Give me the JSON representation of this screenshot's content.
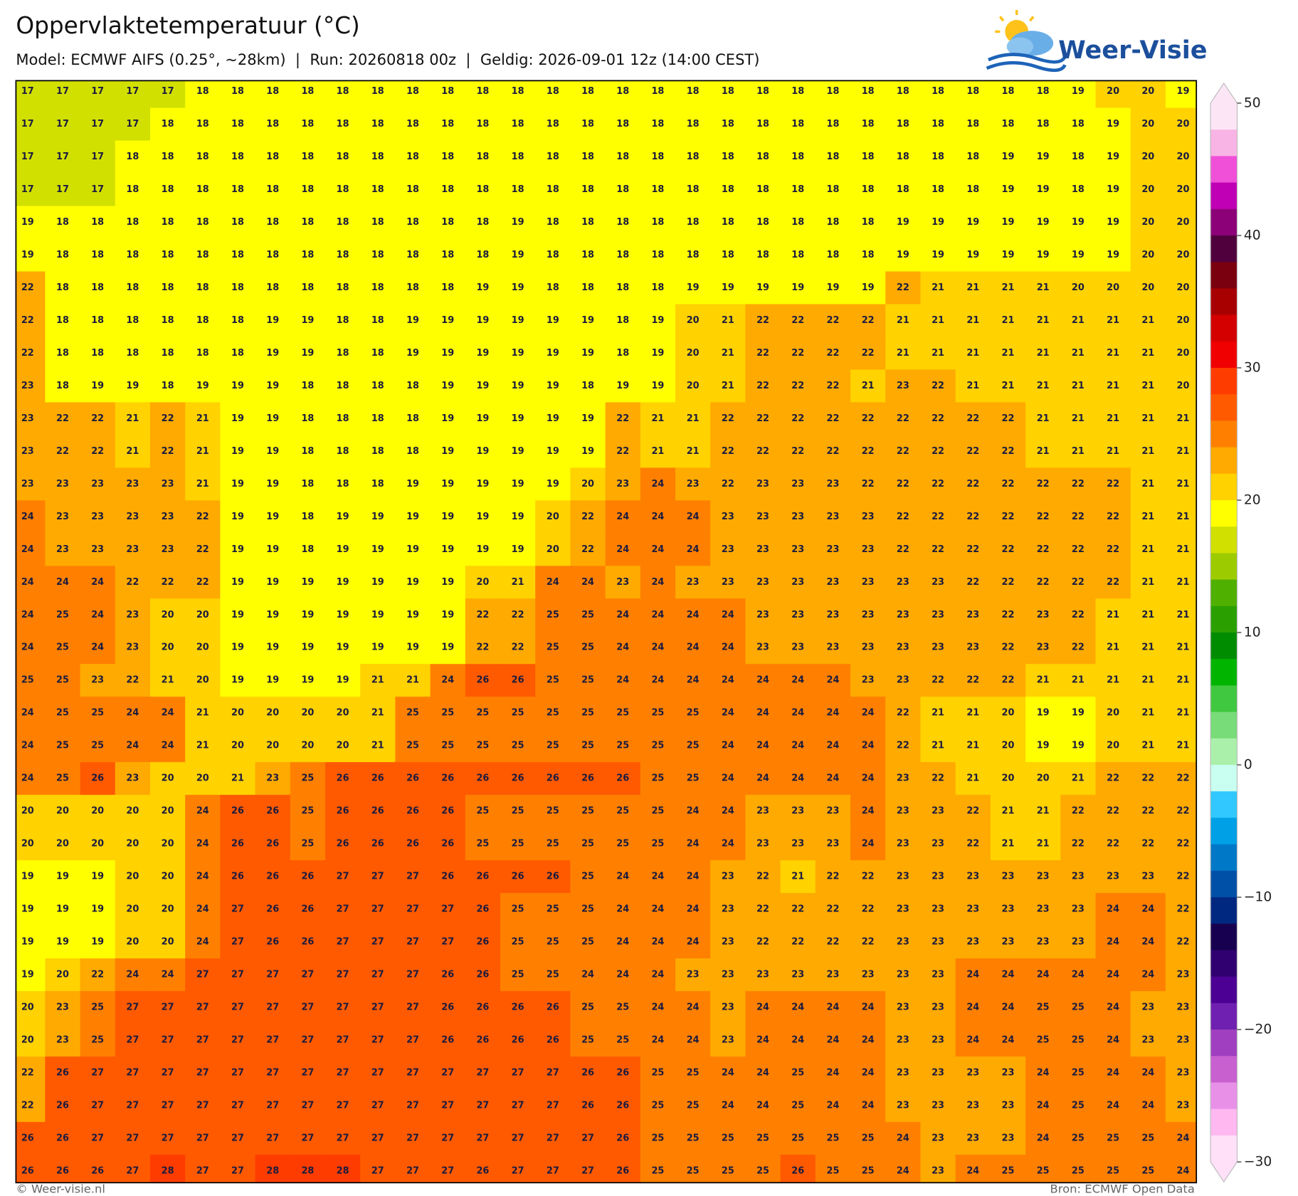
{
  "header": {
    "title": "Oppervlaktetemperatuur (°C)",
    "subtitle": "Model: ECMWF AIFS (0.25°, ~28km)  |  Run: 20260818 00z  |  Geldig: 2026-09-01 12z (14:00 CEST)",
    "logo": "Weer-Visie"
  },
  "map": {
    "rows": [
      [
        17,
        17,
        17,
        17,
        17,
        18,
        18,
        18,
        18,
        18,
        18,
        18,
        18,
        18,
        18,
        18,
        18,
        18,
        18,
        18,
        18,
        18,
        18,
        18,
        18,
        18,
        18,
        18,
        18,
        18,
        19,
        20,
        20,
        19
      ],
      [
        17,
        17,
        17,
        17,
        18,
        18,
        18,
        18,
        18,
        18,
        18,
        18,
        18,
        18,
        18,
        18,
        18,
        18,
        18,
        18,
        18,
        18,
        18,
        18,
        18,
        18,
        18,
        18,
        18,
        18,
        18,
        19,
        20,
        20
      ],
      [
        17,
        17,
        17,
        18,
        18,
        18,
        18,
        18,
        18,
        18,
        18,
        18,
        18,
        18,
        18,
        18,
        18,
        18,
        18,
        18,
        18,
        18,
        18,
        18,
        18,
        18,
        18,
        18,
        19,
        19,
        18,
        19,
        20,
        20
      ],
      [
        17,
        17,
        17,
        18,
        18,
        18,
        18,
        18,
        18,
        18,
        18,
        18,
        18,
        18,
        18,
        18,
        18,
        18,
        18,
        18,
        18,
        18,
        18,
        18,
        18,
        18,
        18,
        18,
        19,
        19,
        18,
        19,
        20,
        20
      ],
      [
        19,
        18,
        18,
        18,
        18,
        18,
        18,
        18,
        18,
        18,
        18,
        18,
        18,
        18,
        19,
        18,
        18,
        18,
        18,
        18,
        18,
        18,
        18,
        18,
        18,
        19,
        19,
        19,
        19,
        19,
        19,
        19,
        20,
        20
      ],
      [
        19,
        18,
        18,
        18,
        18,
        18,
        18,
        18,
        18,
        18,
        18,
        18,
        18,
        18,
        19,
        18,
        18,
        18,
        18,
        18,
        18,
        18,
        18,
        18,
        18,
        19,
        19,
        19,
        19,
        19,
        19,
        19,
        20,
        20
      ],
      [
        22,
        18,
        18,
        18,
        18,
        18,
        18,
        18,
        18,
        18,
        18,
        18,
        18,
        19,
        19,
        18,
        18,
        18,
        18,
        19,
        19,
        19,
        19,
        19,
        19,
        22,
        21,
        21,
        21,
        21,
        20,
        20,
        20,
        20
      ],
      [
        22,
        18,
        18,
        18,
        18,
        18,
        18,
        19,
        19,
        18,
        18,
        19,
        19,
        19,
        19,
        19,
        19,
        18,
        19,
        20,
        21,
        22,
        22,
        22,
        22,
        21,
        21,
        21,
        21,
        21,
        21,
        21,
        21,
        20
      ],
      [
        22,
        18,
        18,
        18,
        18,
        18,
        18,
        19,
        19,
        18,
        18,
        19,
        19,
        19,
        19,
        19,
        19,
        18,
        19,
        20,
        21,
        22,
        22,
        22,
        22,
        21,
        21,
        21,
        21,
        21,
        21,
        21,
        21,
        20
      ],
      [
        23,
        18,
        19,
        19,
        18,
        19,
        19,
        19,
        18,
        18,
        18,
        18,
        19,
        19,
        19,
        19,
        18,
        19,
        19,
        20,
        21,
        22,
        22,
        22,
        21,
        23,
        22,
        21,
        21,
        21,
        21,
        21,
        21,
        20
      ],
      [
        23,
        22,
        22,
        21,
        22,
        21,
        19,
        19,
        18,
        18,
        18,
        18,
        19,
        19,
        19,
        19,
        19,
        22,
        21,
        21,
        22,
        22,
        22,
        22,
        22,
        22,
        22,
        22,
        22,
        21,
        21,
        21,
        21,
        21
      ],
      [
        23,
        22,
        22,
        21,
        22,
        21,
        19,
        19,
        18,
        18,
        18,
        18,
        19,
        19,
        19,
        19,
        19,
        22,
        21,
        21,
        22,
        22,
        22,
        22,
        22,
        22,
        22,
        22,
        22,
        21,
        21,
        21,
        21,
        21
      ],
      [
        23,
        23,
        23,
        23,
        23,
        21,
        19,
        19,
        18,
        18,
        18,
        19,
        19,
        19,
        19,
        19,
        20,
        23,
        24,
        23,
        22,
        23,
        23,
        23,
        22,
        22,
        22,
        22,
        22,
        22,
        22,
        22,
        21,
        21
      ],
      [
        24,
        23,
        23,
        23,
        23,
        22,
        19,
        19,
        18,
        19,
        19,
        19,
        19,
        19,
        19,
        20,
        22,
        24,
        24,
        24,
        23,
        23,
        23,
        23,
        23,
        22,
        22,
        22,
        22,
        22,
        22,
        22,
        21,
        21
      ],
      [
        24,
        23,
        23,
        23,
        23,
        22,
        19,
        19,
        18,
        19,
        19,
        19,
        19,
        19,
        19,
        20,
        22,
        24,
        24,
        24,
        23,
        23,
        23,
        23,
        23,
        22,
        22,
        22,
        22,
        22,
        22,
        22,
        21,
        21
      ],
      [
        24,
        24,
        24,
        22,
        22,
        22,
        19,
        19,
        19,
        19,
        19,
        19,
        19,
        20,
        21,
        24,
        24,
        23,
        24,
        23,
        23,
        23,
        23,
        23,
        23,
        23,
        23,
        22,
        22,
        22,
        22,
        22,
        21,
        21
      ],
      [
        24,
        25,
        24,
        23,
        20,
        20,
        19,
        19,
        19,
        19,
        19,
        19,
        19,
        22,
        22,
        25,
        25,
        24,
        24,
        24,
        24,
        23,
        23,
        23,
        23,
        23,
        23,
        23,
        22,
        23,
        22,
        21,
        21,
        21
      ],
      [
        24,
        25,
        24,
        23,
        20,
        20,
        19,
        19,
        19,
        19,
        19,
        19,
        19,
        22,
        22,
        25,
        25,
        24,
        24,
        24,
        24,
        23,
        23,
        23,
        23,
        23,
        23,
        23,
        22,
        23,
        22,
        21,
        21,
        21
      ],
      [
        25,
        25,
        23,
        22,
        21,
        20,
        19,
        19,
        19,
        19,
        21,
        21,
        24,
        26,
        26,
        25,
        25,
        24,
        24,
        24,
        24,
        24,
        24,
        24,
        23,
        23,
        22,
        22,
        22,
        21,
        21,
        21,
        21,
        21
      ],
      [
        24,
        25,
        25,
        24,
        24,
        21,
        20,
        20,
        20,
        20,
        21,
        25,
        25,
        25,
        25,
        25,
        25,
        25,
        25,
        25,
        24,
        24,
        24,
        24,
        24,
        22,
        21,
        21,
        20,
        19,
        19,
        20,
        21,
        21
      ],
      [
        24,
        25,
        25,
        24,
        24,
        21,
        20,
        20,
        20,
        20,
        21,
        25,
        25,
        25,
        25,
        25,
        25,
        25,
        25,
        25,
        24,
        24,
        24,
        24,
        24,
        22,
        21,
        21,
        20,
        19,
        19,
        20,
        21,
        21
      ],
      [
        24,
        25,
        26,
        23,
        20,
        20,
        21,
        23,
        25,
        26,
        26,
        26,
        26,
        26,
        26,
        26,
        26,
        26,
        25,
        25,
        24,
        24,
        24,
        24,
        24,
        23,
        22,
        21,
        20,
        20,
        21,
        22,
        22,
        22
      ],
      [
        20,
        20,
        20,
        20,
        20,
        24,
        26,
        26,
        25,
        26,
        26,
        26,
        26,
        25,
        25,
        25,
        25,
        25,
        25,
        24,
        24,
        23,
        23,
        23,
        24,
        23,
        23,
        22,
        21,
        21,
        22,
        22,
        22,
        22
      ],
      [
        20,
        20,
        20,
        20,
        20,
        24,
        26,
        26,
        25,
        26,
        26,
        26,
        26,
        25,
        25,
        25,
        25,
        25,
        25,
        24,
        24,
        23,
        23,
        23,
        24,
        23,
        23,
        22,
        21,
        21,
        22,
        22,
        22,
        22
      ],
      [
        19,
        19,
        19,
        20,
        20,
        24,
        26,
        26,
        26,
        27,
        27,
        27,
        26,
        26,
        26,
        26,
        25,
        24,
        24,
        24,
        23,
        22,
        21,
        22,
        22,
        23,
        23,
        23,
        23,
        23,
        23,
        23,
        23,
        22
      ],
      [
        19,
        19,
        19,
        20,
        20,
        24,
        27,
        26,
        26,
        27,
        27,
        27,
        27,
        26,
        25,
        25,
        25,
        24,
        24,
        24,
        23,
        22,
        22,
        22,
        22,
        23,
        23,
        23,
        23,
        23,
        23,
        24,
        24,
        22
      ],
      [
        19,
        19,
        19,
        20,
        20,
        24,
        27,
        26,
        26,
        27,
        27,
        27,
        27,
        26,
        25,
        25,
        25,
        24,
        24,
        24,
        23,
        22,
        22,
        22,
        22,
        23,
        23,
        23,
        23,
        23,
        23,
        24,
        24,
        22
      ],
      [
        19,
        20,
        22,
        24,
        24,
        27,
        27,
        27,
        27,
        27,
        27,
        27,
        26,
        26,
        25,
        25,
        24,
        24,
        24,
        23,
        23,
        23,
        23,
        23,
        23,
        23,
        23,
        24,
        24,
        24,
        24,
        24,
        24,
        23
      ],
      [
        20,
        23,
        25,
        27,
        27,
        27,
        27,
        27,
        27,
        27,
        27,
        27,
        26,
        26,
        26,
        26,
        25,
        25,
        24,
        24,
        23,
        24,
        24,
        24,
        24,
        23,
        23,
        24,
        24,
        25,
        25,
        24,
        23,
        23
      ],
      [
        20,
        23,
        25,
        27,
        27,
        27,
        27,
        27,
        27,
        27,
        27,
        27,
        26,
        26,
        26,
        26,
        25,
        25,
        24,
        24,
        23,
        24,
        24,
        24,
        24,
        23,
        23,
        24,
        24,
        25,
        25,
        24,
        23,
        23
      ],
      [
        22,
        26,
        27,
        27,
        27,
        27,
        27,
        27,
        27,
        27,
        27,
        27,
        27,
        27,
        27,
        27,
        26,
        26,
        25,
        25,
        24,
        24,
        25,
        24,
        24,
        23,
        23,
        23,
        23,
        24,
        25,
        24,
        24,
        23
      ],
      [
        22,
        26,
        27,
        27,
        27,
        27,
        27,
        27,
        27,
        27,
        27,
        27,
        27,
        27,
        27,
        27,
        26,
        26,
        25,
        25,
        24,
        24,
        25,
        24,
        24,
        23,
        23,
        23,
        23,
        24,
        25,
        24,
        24,
        23
      ],
      [
        26,
        26,
        27,
        27,
        27,
        27,
        27,
        27,
        27,
        27,
        27,
        27,
        27,
        27,
        27,
        27,
        27,
        26,
        25,
        25,
        25,
        25,
        25,
        25,
        25,
        24,
        23,
        23,
        23,
        24,
        25,
        25,
        25,
        24
      ],
      [
        26,
        26,
        26,
        27,
        28,
        27,
        27,
        28,
        28,
        28,
        27,
        27,
        27,
        26,
        27,
        27,
        27,
        26,
        25,
        25,
        25,
        25,
        26,
        25,
        25,
        24,
        23,
        24,
        25,
        25,
        25,
        25,
        25,
        24
      ]
    ],
    "colorbar": {
      "clim": [
        -30,
        50
      ],
      "colors": [
        "#fce6f6",
        "#f8b4e4",
        "#f050d8",
        "#c000b4",
        "#8c0078",
        "#50003c",
        "#7a0010",
        "#a80000",
        "#d40000",
        "#f00000",
        "#ff3c00",
        "#ff5a00",
        "#ff8000",
        "#ffaa00",
        "#ffd200",
        "#ffff00",
        "#d2e000",
        "#9ccc00",
        "#50b000",
        "#2aa000",
        "#008c00",
        "#00b400",
        "#40c840",
        "#78dc78",
        "#aaf0aa",
        "#c8fff0",
        "#30c8ff",
        "#00a0e6",
        "#0078c8",
        "#0050a8",
        "#002880",
        "#180050",
        "#300070",
        "#4c0094",
        "#7020b0",
        "#a040c0",
        "#c860d0",
        "#e890e8",
        "#ffb8f0",
        "#ffe0f8"
      ],
      "ticks": [
        50,
        40,
        30,
        20,
        10,
        0,
        {
          "value": -10,
          "label": "−10"
        },
        {
          "value": -20,
          "label": "−20"
        },
        {
          "value": -30,
          "label": "−30"
        }
      ]
    }
  },
  "footer": {
    "credit": "© Weer-visie.nl",
    "source": "Bron: ECMWF Open Data"
  }
}
